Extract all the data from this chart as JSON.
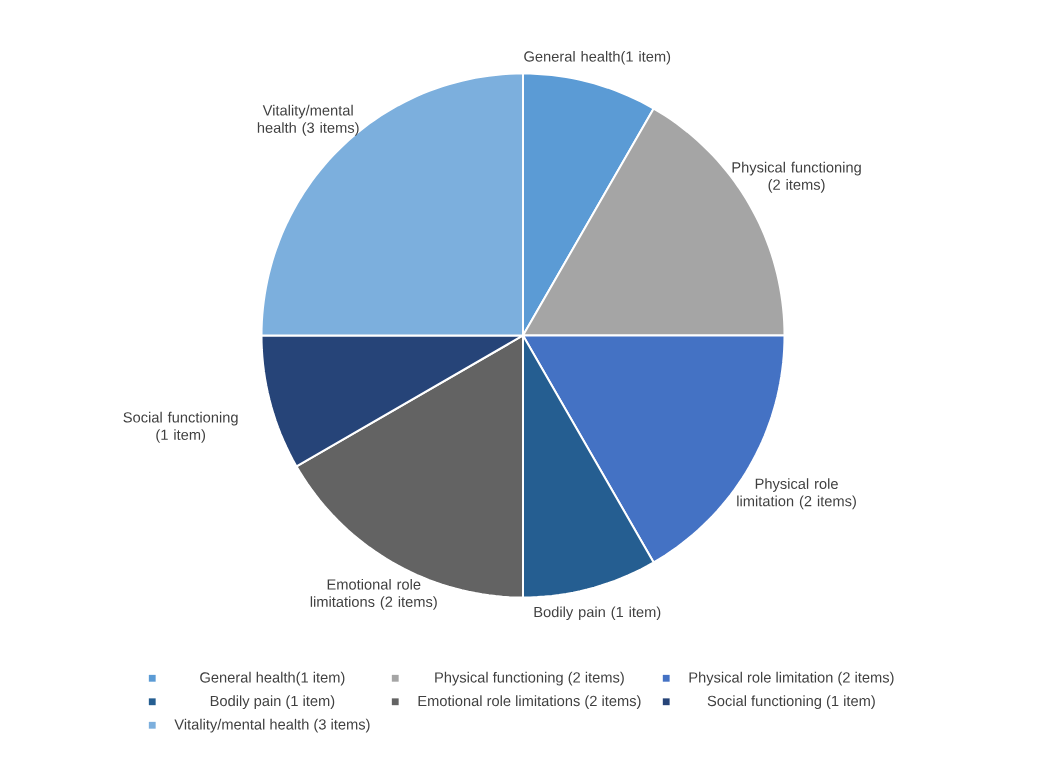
{
  "chart_data": {
    "type": "pie",
    "categories": [
      "General health(1 item)",
      "Physical functioning (2 items)",
      "Physical role limitation (2 items)",
      "Bodily pain (1 item)",
      "Emotional role limitations (2 items)",
      "Social functioning (1 item)",
      "Vitality/mental health (3 items)"
    ],
    "values": [
      8.33,
      16.67,
      16.67,
      8.33,
      16.67,
      8.33,
      25
    ],
    "colors": [
      "#5b9bd5",
      "#a5a5a5",
      "#4472c4",
      "#255e91",
      "#636363",
      "#264478",
      "#7cafdd"
    ],
    "legend": "bottom"
  }
}
